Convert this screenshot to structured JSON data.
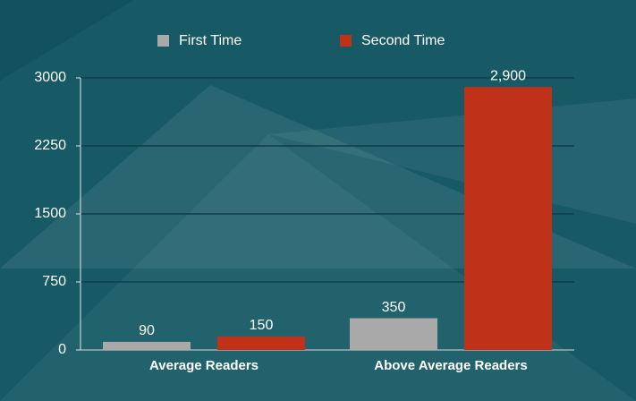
{
  "chart_data": {
    "type": "bar",
    "categories": [
      "Average Readers",
      "Above Average Readers"
    ],
    "series": [
      {
        "name": "First Time",
        "color": "#a9a9a9",
        "values": [
          90,
          350
        ],
        "value_labels": [
          "90",
          "350"
        ]
      },
      {
        "name": "Second Time",
        "color": "#bf3219",
        "values": [
          150,
          2900
        ],
        "value_labels": [
          "150",
          "2,900"
        ]
      }
    ],
    "ylim": [
      0,
      3000
    ],
    "yticks": [
      0,
      750,
      1500,
      2250,
      3000
    ],
    "grid": true
  }
}
